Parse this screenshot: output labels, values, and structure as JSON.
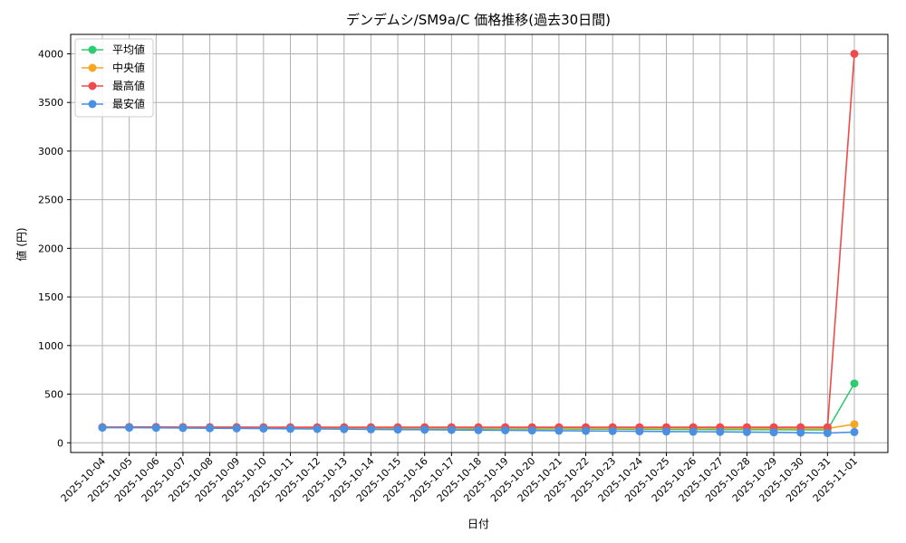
{
  "chart_data": {
    "type": "line",
    "title": "デンデムシ/SM9a/C 価格推移(過去30日間)",
    "xlabel": "日付",
    "ylabel": "値 (円)",
    "x": [
      "2025-10-04",
      "2025-10-05",
      "2025-10-06",
      "2025-10-07",
      "2025-10-08",
      "2025-10-09",
      "2025-10-10",
      "2025-10-11",
      "2025-10-12",
      "2025-10-13",
      "2025-10-14",
      "2025-10-15",
      "2025-10-16",
      "2025-10-17",
      "2025-10-18",
      "2025-10-19",
      "2025-10-20",
      "2025-10-21",
      "2025-10-22",
      "2025-10-23",
      "2025-10-24",
      "2025-10-25",
      "2025-10-26",
      "2025-10-27",
      "2025-10-28",
      "2025-10-29",
      "2025-10-30",
      "2025-10-31",
      "2025-11-01"
    ],
    "ylim": [
      -100,
      4200
    ],
    "yticks": [
      0,
      500,
      1000,
      1500,
      2000,
      2500,
      3000,
      3500,
      4000
    ],
    "grid": true,
    "legend_position": "top-left",
    "series": [
      {
        "name": "平均値",
        "color": "#2ecc71",
        "values": [
          160,
          160,
          158,
          157,
          155,
          154,
          153,
          152,
          151,
          150,
          149,
          148,
          147,
          146,
          145,
          144,
          143,
          142,
          141,
          140,
          139,
          138,
          137,
          136,
          135,
          134,
          133,
          132,
          610
        ]
      },
      {
        "name": "中央値",
        "color": "#f5a623",
        "values": [
          160,
          160,
          159,
          158,
          157,
          157,
          156,
          156,
          155,
          155,
          154,
          154,
          153,
          153,
          152,
          152,
          152,
          151,
          151,
          150,
          150,
          150,
          149,
          149,
          148,
          148,
          147,
          147,
          190
        ]
      },
      {
        "name": "最高値",
        "color": "#f04a4a",
        "values": [
          160,
          162,
          162,
          161,
          161,
          161,
          160,
          160,
          160,
          160,
          160,
          160,
          160,
          160,
          160,
          160,
          160,
          160,
          160,
          160,
          160,
          160,
          160,
          160,
          160,
          160,
          160,
          160,
          4000
        ]
      },
      {
        "name": "最安値",
        "color": "#4a90e2",
        "values": [
          155,
          155,
          154,
          152,
          150,
          148,
          146,
          144,
          142,
          140,
          138,
          136,
          134,
          132,
          130,
          128,
          126,
          124,
          122,
          120,
          118,
          116,
          114,
          112,
          110,
          108,
          104,
          100,
          110
        ]
      }
    ]
  }
}
